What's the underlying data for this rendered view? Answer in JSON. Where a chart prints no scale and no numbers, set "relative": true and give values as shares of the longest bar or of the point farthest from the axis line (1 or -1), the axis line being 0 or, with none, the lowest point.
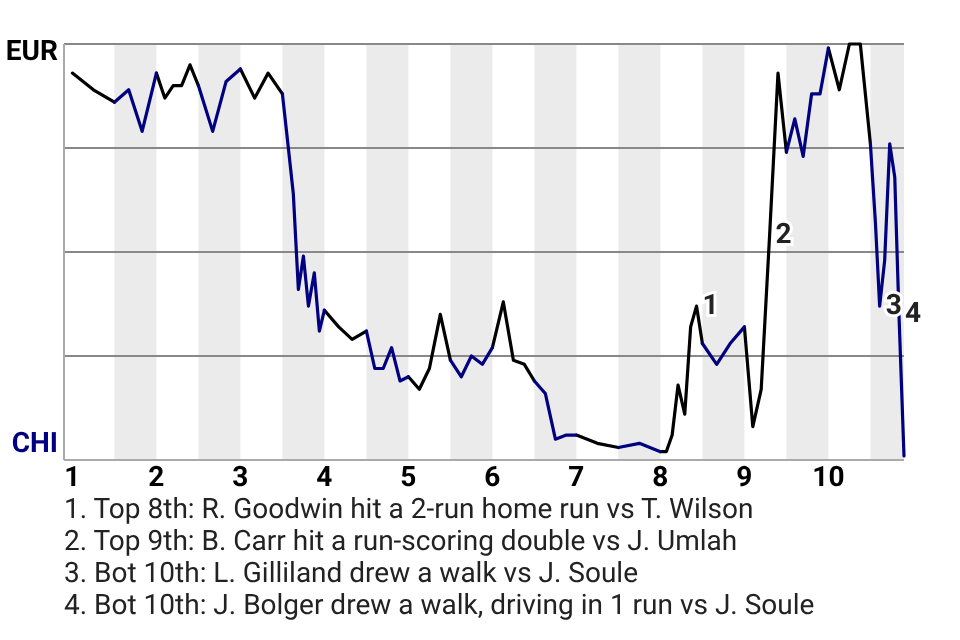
{
  "chart_data": {
    "type": "line",
    "relative": true,
    "x": [
      1,
      1.25,
      1.5,
      1.67,
      1.83,
      2,
      2.1,
      2.2,
      2.3,
      2.4,
      2.5,
      2.67,
      2.83,
      3,
      3.17,
      3.33,
      3.5,
      3.56,
      3.63,
      3.69,
      3.75,
      3.81,
      3.88,
      3.94,
      4,
      4.17,
      4.33,
      4.5,
      4.6,
      4.7,
      4.8,
      4.9,
      5,
      5.13,
      5.25,
      5.38,
      5.5,
      5.63,
      5.75,
      5.88,
      6,
      6.13,
      6.25,
      6.38,
      6.5,
      6.63,
      6.75,
      6.88,
      7,
      7.25,
      7.5,
      7.75,
      8,
      8.07,
      8.14,
      8.21,
      8.29,
      8.36,
      8.43,
      8.5,
      8.67,
      8.83,
      9,
      9.1,
      9.2,
      9.3,
      9.4,
      9.5,
      9.6,
      9.7,
      9.8,
      9.9,
      10,
      10.13,
      10.25,
      10.38,
      10.5,
      10.56,
      10.61,
      10.67,
      10.73,
      10.79,
      10.84,
      10.9
    ],
    "series": [
      {
        "color": "#000000",
        "values": [
          0.93,
          0.89,
          0.86,
          null,
          null,
          0.93,
          0.87,
          0.9,
          0.9,
          0.95,
          0.9,
          null,
          null,
          0.94,
          0.87,
          0.93,
          0.88,
          null,
          null,
          null,
          null,
          null,
          null,
          null,
          0.36,
          0.32,
          0.29,
          0.31,
          null,
          null,
          null,
          null,
          0.2,
          0.17,
          0.22,
          0.35,
          0.24,
          null,
          null,
          null,
          0.27,
          0.38,
          0.24,
          0.23,
          0.19,
          null,
          null,
          null,
          0.06,
          0.04,
          0.03,
          null,
          0.02,
          0.02,
          0.06,
          0.18,
          0.11,
          0.32,
          0.37,
          0.28,
          null,
          null,
          0.32,
          0.08,
          0.17,
          0.54,
          0.93,
          0.74,
          null,
          null,
          null,
          null,
          0.99,
          0.89,
          1,
          1,
          0.76,
          null,
          null,
          null,
          null,
          null,
          null,
          null
        ]
      },
      {
        "color": "#000080",
        "values": [
          null,
          null,
          0.86,
          0.89,
          0.79,
          0.93,
          null,
          null,
          null,
          null,
          0.9,
          0.79,
          0.91,
          0.94,
          null,
          null,
          0.88,
          0.77,
          0.64,
          0.41,
          0.49,
          0.37,
          0.45,
          0.31,
          0.36,
          null,
          null,
          0.31,
          0.22,
          0.22,
          0.27,
          0.19,
          0.2,
          null,
          null,
          null,
          0.24,
          0.2,
          0.25,
          0.23,
          0.27,
          null,
          null,
          null,
          0.19,
          0.16,
          0.05,
          0.06,
          0.06,
          null,
          0.03,
          0.04,
          0.02,
          null,
          null,
          null,
          null,
          null,
          null,
          0.28,
          0.23,
          0.28,
          0.32,
          null,
          null,
          null,
          null,
          0.74,
          0.82,
          0.73,
          0.88,
          0.88,
          0.99,
          null,
          null,
          null,
          0.76,
          0.57,
          0.37,
          0.48,
          0.76,
          0.68,
          0.35,
          0.01
        ]
      }
    ],
    "xlim": [
      0.9,
      10.9
    ],
    "xticks": [
      1,
      2,
      3,
      4,
      5,
      6,
      7,
      8,
      9,
      10
    ],
    "ref_lines": [
      {
        "axis": "y",
        "value": 0.25,
        "color": "#888888"
      },
      {
        "axis": "y",
        "value": 0.5,
        "color": "#888888"
      },
      {
        "axis": "y",
        "value": 0.75,
        "color": "#888888"
      },
      {
        "axis": "y",
        "value": 1,
        "color": "#888888"
      }
    ],
    "bands": [
      {
        "axis": "x",
        "from": 1.5,
        "to": 2,
        "color": "#ebebeb"
      },
      {
        "axis": "x",
        "from": 2.5,
        "to": 3,
        "color": "#ebebeb"
      },
      {
        "axis": "x",
        "from": 3.5,
        "to": 4,
        "color": "#ebebeb"
      },
      {
        "axis": "x",
        "from": 4.5,
        "to": 5,
        "color": "#ebebeb"
      },
      {
        "axis": "x",
        "from": 5.5,
        "to": 6,
        "color": "#ebebeb"
      },
      {
        "axis": "x",
        "from": 6.5,
        "to": 7,
        "color": "#ebebeb"
      },
      {
        "axis": "x",
        "from": 7.5,
        "to": 8,
        "color": "#ebebeb"
      },
      {
        "axis": "x",
        "from": 8.5,
        "to": 9,
        "color": "#ebebeb"
      },
      {
        "axis": "x",
        "from": 9.5,
        "to": 10,
        "color": "#ebebeb"
      },
      {
        "axis": "x",
        "from": 10.5,
        "to": 10.9,
        "color": "#ebebeb"
      }
    ],
    "marker": "none",
    "line_style": "solid",
    "annotations": [
      "EUR",
      "CHI",
      {
        "text": "1",
        "x": 8.43,
        "y": 0.37
      },
      {
        "text": "2",
        "x": 9.3,
        "y": 0.54
      },
      {
        "text": "3",
        "x": 10.61,
        "y": 0.37
      },
      {
        "text": "4",
        "x": 10.84,
        "y": 0.35
      },
      "1. Top 8th: R. Goodwin hit a 2-run home run vs T. Wilson",
      "2. Top 9th: B. Carr hit a run-scoring double vs J. Umlah",
      "3. Bot 10th: L. Gilliland drew a walk vs J. Soule",
      "4. Bot 10th: J. Bolger drew a walk, driving in 1 run vs J. Soule"
    ]
  }
}
